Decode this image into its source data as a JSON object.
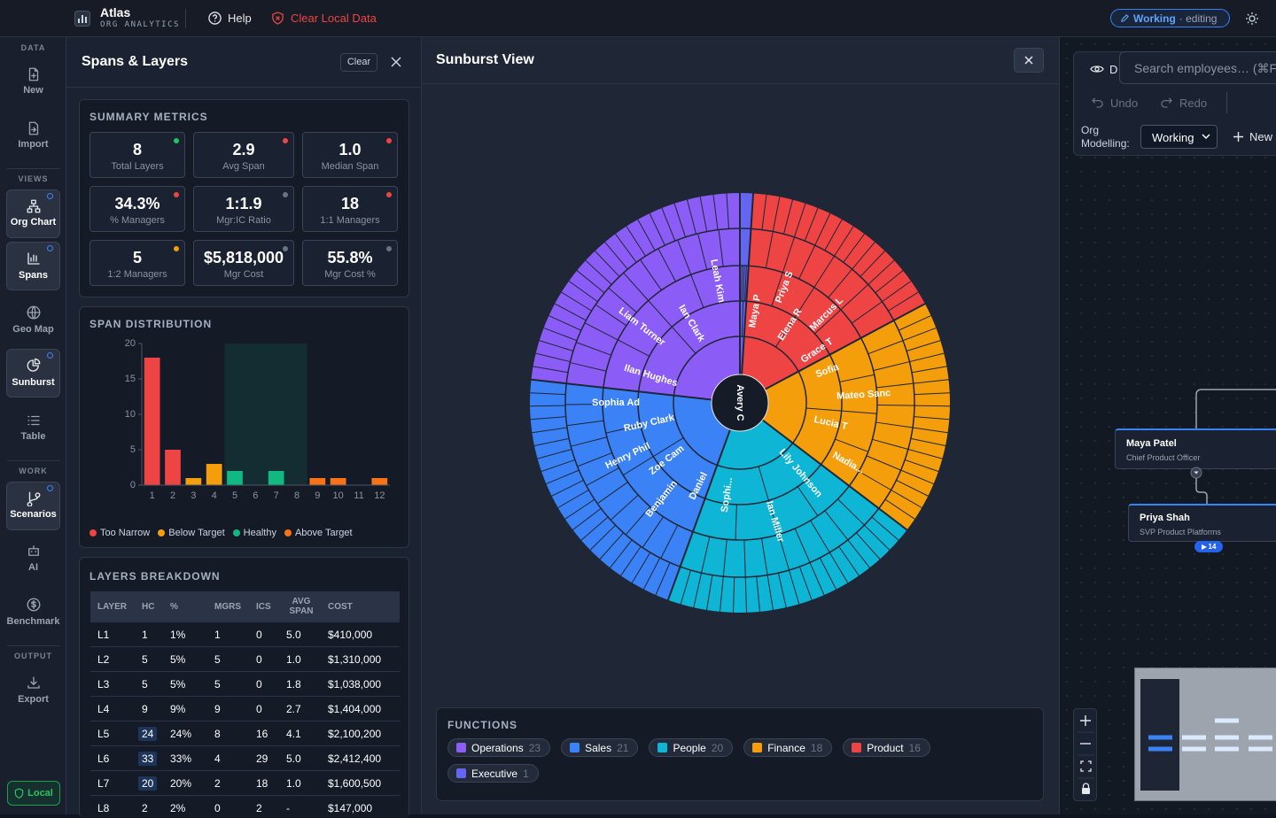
{
  "header": {
    "app_name": "Atlas",
    "app_subtitle": "ORG ANALYTICS",
    "help": "Help",
    "clear_data": "Clear Local Data",
    "status": "Working",
    "mode": "· editing"
  },
  "sidebar": {
    "sections": [
      {
        "title": "DATA",
        "items": [
          "New",
          "Import"
        ]
      },
      {
        "title": "VIEWS",
        "items": [
          "Org Chart",
          "Spans",
          "Geo Map",
          "Sunburst",
          "Table"
        ]
      },
      {
        "title": "WORK",
        "items": [
          "Scenarios",
          "AI",
          "Benchmark"
        ]
      },
      {
        "title": "OUTPUT",
        "items": [
          "Export"
        ]
      }
    ],
    "storage": "Local"
  },
  "spans_panel": {
    "title": "Spans & Layers",
    "clear": "Clear",
    "summary": {
      "title": "SUMMARY METRICS",
      "metrics": [
        {
          "value": "8",
          "label": "Total Layers",
          "status_color": "#22c55e"
        },
        {
          "value": "2.9",
          "label": "Avg Span",
          "status_color": "#ef4444"
        },
        {
          "value": "1.0",
          "label": "Median Span",
          "status_color": "#ef4444"
        },
        {
          "value": "34.3%",
          "label": "% Managers",
          "status_color": "#ef4444"
        },
        {
          "value": "1:1.9",
          "label": "Mgr:IC Ratio",
          "status_color": "#6b7280"
        },
        {
          "value": "18",
          "label": "1:1 Managers",
          "status_color": "#ef4444"
        },
        {
          "value": "5",
          "label": "1:2 Managers",
          "status_color": "#f59e0b"
        },
        {
          "value": "$5,818,000",
          "label": "Mgr Cost",
          "status_color": "#6b7280"
        },
        {
          "value": "55.8%",
          "label": "Mgr Cost %",
          "status_color": "#6b7280"
        }
      ]
    },
    "span_distribution": {
      "type": "bar",
      "title": "SPAN DISTRIBUTION",
      "categories": [
        "1",
        "2",
        "3",
        "4",
        "5",
        "6",
        "7",
        "8",
        "9",
        "10",
        "11",
        "12"
      ],
      "values": [
        18,
        5,
        1,
        3,
        2,
        0,
        2,
        0,
        1,
        1,
        0,
        1
      ],
      "colors": [
        "#ef4444",
        "#ef4444",
        "#f59e0b",
        "#f59e0b",
        "#10b981",
        "#10b981",
        "#10b981",
        "#10b981",
        "#f97316",
        "#f97316",
        "#f97316",
        "#f97316"
      ],
      "ylim": [
        0,
        20
      ],
      "yticks": [
        0,
        5,
        10,
        15,
        20
      ],
      "grid": false,
      "target": {
        "from": "5",
        "to": "8"
      },
      "legend": [
        {
          "name": "Too Narrow",
          "color": "#ef4444"
        },
        {
          "name": "Below Target",
          "color": "#f59e0b"
        },
        {
          "name": "Healthy",
          "color": "#10b981"
        },
        {
          "name": "Above Target",
          "color": "#f97316"
        }
      ]
    },
    "layers": {
      "title": "LAYERS BREAKDOWN",
      "columns": [
        "LAYER",
        "HC",
        "%",
        "MGRS",
        "ICS",
        "AVG SPAN",
        "COST"
      ],
      "rows": [
        [
          "L1",
          "1",
          "1%",
          "1",
          "0",
          "5.0",
          "$410,000"
        ],
        [
          "L2",
          "5",
          "5%",
          "5",
          "0",
          "1.0",
          "$1,310,000"
        ],
        [
          "L3",
          "5",
          "5%",
          "5",
          "0",
          "1.8",
          "$1,038,000"
        ],
        [
          "L4",
          "9",
          "9%",
          "9",
          "0",
          "2.7",
          "$1,404,000"
        ],
        [
          "L5",
          "24",
          "24%",
          "8",
          "16",
          "4.1",
          "$2,100,200"
        ],
        [
          "L6",
          "33",
          "33%",
          "4",
          "29",
          "5.0",
          "$2,412,400"
        ],
        [
          "L7",
          "20",
          "20%",
          "2",
          "18",
          "1.0",
          "$1,600,500"
        ],
        [
          "L8",
          "2",
          "2%",
          "0",
          "2",
          "-",
          "$147,000"
        ]
      ]
    }
  },
  "sunburst": {
    "title": "Sunburst View",
    "root_label": "Avery C",
    "functions_title": "FUNCTIONS",
    "functions": [
      {
        "name": "Operations",
        "count": 23,
        "color": "#8b5cf6",
        "people": [
          "Ilan Hughes",
          "Liam Turner",
          "Ian Clark",
          "Leah Kim"
        ]
      },
      {
        "name": "Sales",
        "count": 21,
        "color": "#3b82f6",
        "people": [
          "Daniel",
          "Benjamin",
          "Zoe Cam",
          "Henry Phil",
          "Ruby Clark",
          "Sophia Ad"
        ]
      },
      {
        "name": "People",
        "count": 20,
        "color": "#0fb5d4",
        "people": [
          "Lily Johnson",
          "Ian Miller",
          "Sophi..."
        ]
      },
      {
        "name": "Finance",
        "count": 18,
        "color": "#f59e0b",
        "people": [
          "Sofia",
          "Mateo Sanc",
          "Lucia T",
          "Nadia..."
        ]
      },
      {
        "name": "Product",
        "count": 16,
        "color": "#ef4444",
        "people": [
          "Maya P",
          "Priya S",
          "Elena R",
          "Marcus L",
          "Grace T"
        ]
      },
      {
        "name": "Executive",
        "count": 1,
        "color": "#6366f1",
        "people": []
      }
    ]
  },
  "canvas": {
    "toolbar": {
      "details": "D",
      "search_placeholder": "Search employees… (⌘F",
      "undo": "Undo",
      "redo": "Redo",
      "modelling_label": "Org Modelling:",
      "modelling_value": "Working",
      "new": "New"
    },
    "nodes": [
      {
        "name": "Maya Patel",
        "title": "Chief Product Officer"
      },
      {
        "name": "Priya Shah",
        "title": "SVP Product Platforms",
        "reports": 14
      }
    ]
  }
}
